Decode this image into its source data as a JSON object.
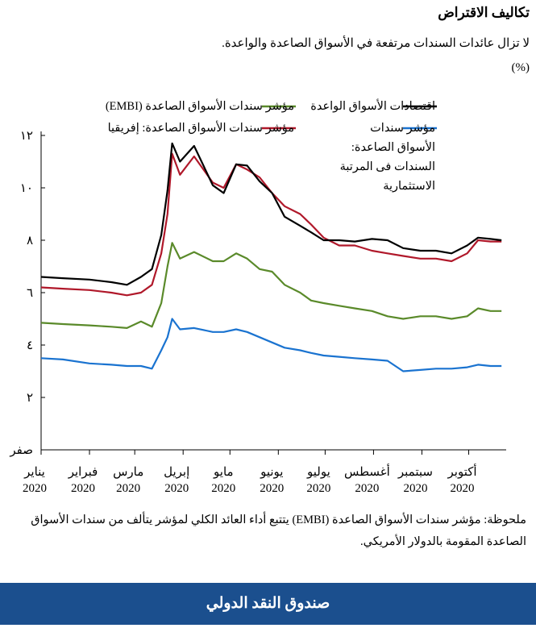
{
  "title": "تكاليف الاقتراض",
  "subtitle": "لا تزال عائدات السندات مرتفعة في الأسواق الصاعدة والواعدة.",
  "unit": "(%)",
  "note": "ملحوظة: مؤشر سندات الأسواق الصاعدة (EMBI) يتتبع أداء العائد الكلي لمؤشر يتألف من سندات الأسواق الصاعدة المقومة بالدولار الأمريكي.",
  "footer": "صندوق النقد الدولي",
  "chart_data": {
    "type": "line",
    "title": "",
    "ylim": [
      0,
      12
    ],
    "yticks": [
      0,
      2,
      4,
      6,
      8,
      10,
      12
    ],
    "ytick_labels": [
      "صفر",
      "٢",
      "٤",
      "٦",
      "٨",
      "١٠",
      "١٢"
    ],
    "xlim": [
      "2020-01-01",
      "2020-10-25"
    ],
    "xticks": [
      "2020-01-01",
      "2020-02-01",
      "2020-03-01",
      "2020-04-01",
      "2020-05-01",
      "2020-06-01",
      "2020-07-01",
      "2020-08-01",
      "2020-09-01",
      "2020-10-01"
    ],
    "xtick_labels": [
      [
        "يناير",
        "2020"
      ],
      [
        "فبراير",
        "2020"
      ],
      [
        "مارس",
        "2020"
      ],
      [
        "إبريل",
        "2020"
      ],
      [
        "مايو",
        "2020"
      ],
      [
        "يونيو",
        "2020"
      ],
      [
        "يوليو",
        "2020"
      ],
      [
        "أغسطس",
        "2020"
      ],
      [
        "سبتمبر",
        "2020"
      ],
      [
        "أكتوبر",
        "2020"
      ]
    ],
    "grid": false,
    "x": [
      "2020-01-01",
      "2020-01-15",
      "2020-02-01",
      "2020-02-15",
      "2020-02-25",
      "2020-03-05",
      "2020-03-12",
      "2020-03-18",
      "2020-03-22",
      "2020-03-25",
      "2020-03-30",
      "2020-04-08",
      "2020-04-20",
      "2020-04-27",
      "2020-05-05",
      "2020-05-12",
      "2020-05-20",
      "2020-05-28",
      "2020-06-05",
      "2020-06-15",
      "2020-06-22",
      "2020-06-30",
      "2020-07-10",
      "2020-07-20",
      "2020-07-31",
      "2020-08-10",
      "2020-08-20",
      "2020-08-31",
      "2020-09-10",
      "2020-09-20",
      "2020-09-30",
      "2020-10-07",
      "2020-10-15",
      "2020-10-22"
    ],
    "series": [
      {
        "name": "اقتصادات الأسواق الواعدة",
        "color": "#000000",
        "values": [
          6.6,
          6.55,
          6.5,
          6.4,
          6.3,
          6.6,
          6.9,
          8.2,
          9.9,
          11.7,
          11.0,
          11.6,
          10.1,
          9.8,
          10.9,
          10.85,
          10.25,
          9.8,
          8.9,
          8.55,
          8.3,
          8.0,
          8.0,
          7.95,
          8.05,
          8.0,
          7.7,
          7.6,
          7.6,
          7.5,
          7.8,
          8.1,
          8.05,
          8.0
        ]
      },
      {
        "name": "مؤشر سندات الأسواق الصاعدة: إفريقيا",
        "color": "#b0182a",
        "values": [
          6.2,
          6.15,
          6.1,
          6.0,
          5.9,
          6.0,
          6.3,
          7.5,
          9.0,
          11.3,
          10.5,
          11.2,
          10.2,
          10.0,
          10.9,
          10.7,
          10.4,
          9.8,
          9.3,
          9.0,
          8.6,
          8.1,
          7.8,
          7.8,
          7.6,
          7.5,
          7.4,
          7.3,
          7.3,
          7.2,
          7.5,
          8.0,
          7.95,
          7.95
        ]
      },
      {
        "name": "مؤشر سندات الأسواق الصاعدة (EMBI)",
        "color": "#5a8a2a",
        "values": [
          4.85,
          4.8,
          4.75,
          4.7,
          4.65,
          4.9,
          4.7,
          5.6,
          7.0,
          7.9,
          7.3,
          7.55,
          7.2,
          7.2,
          7.5,
          7.3,
          6.9,
          6.8,
          6.3,
          6.0,
          5.7,
          5.6,
          5.5,
          5.4,
          5.3,
          5.1,
          5.0,
          5.1,
          5.1,
          5.0,
          5.1,
          5.4,
          5.3,
          5.3
        ]
      },
      {
        "name": "مؤشر سندات الأسواق الصاعدة: السندات فى المرتبة الاستثمارية",
        "color": "#1a73d0",
        "values": [
          3.5,
          3.45,
          3.3,
          3.25,
          3.2,
          3.2,
          3.1,
          3.8,
          4.3,
          5.0,
          4.6,
          4.65,
          4.5,
          4.5,
          4.6,
          4.5,
          4.3,
          4.1,
          3.9,
          3.8,
          3.7,
          3.6,
          3.55,
          3.5,
          3.45,
          3.4,
          3.0,
          3.05,
          3.1,
          3.1,
          3.15,
          3.25,
          3.2,
          3.2
        ]
      }
    ]
  }
}
